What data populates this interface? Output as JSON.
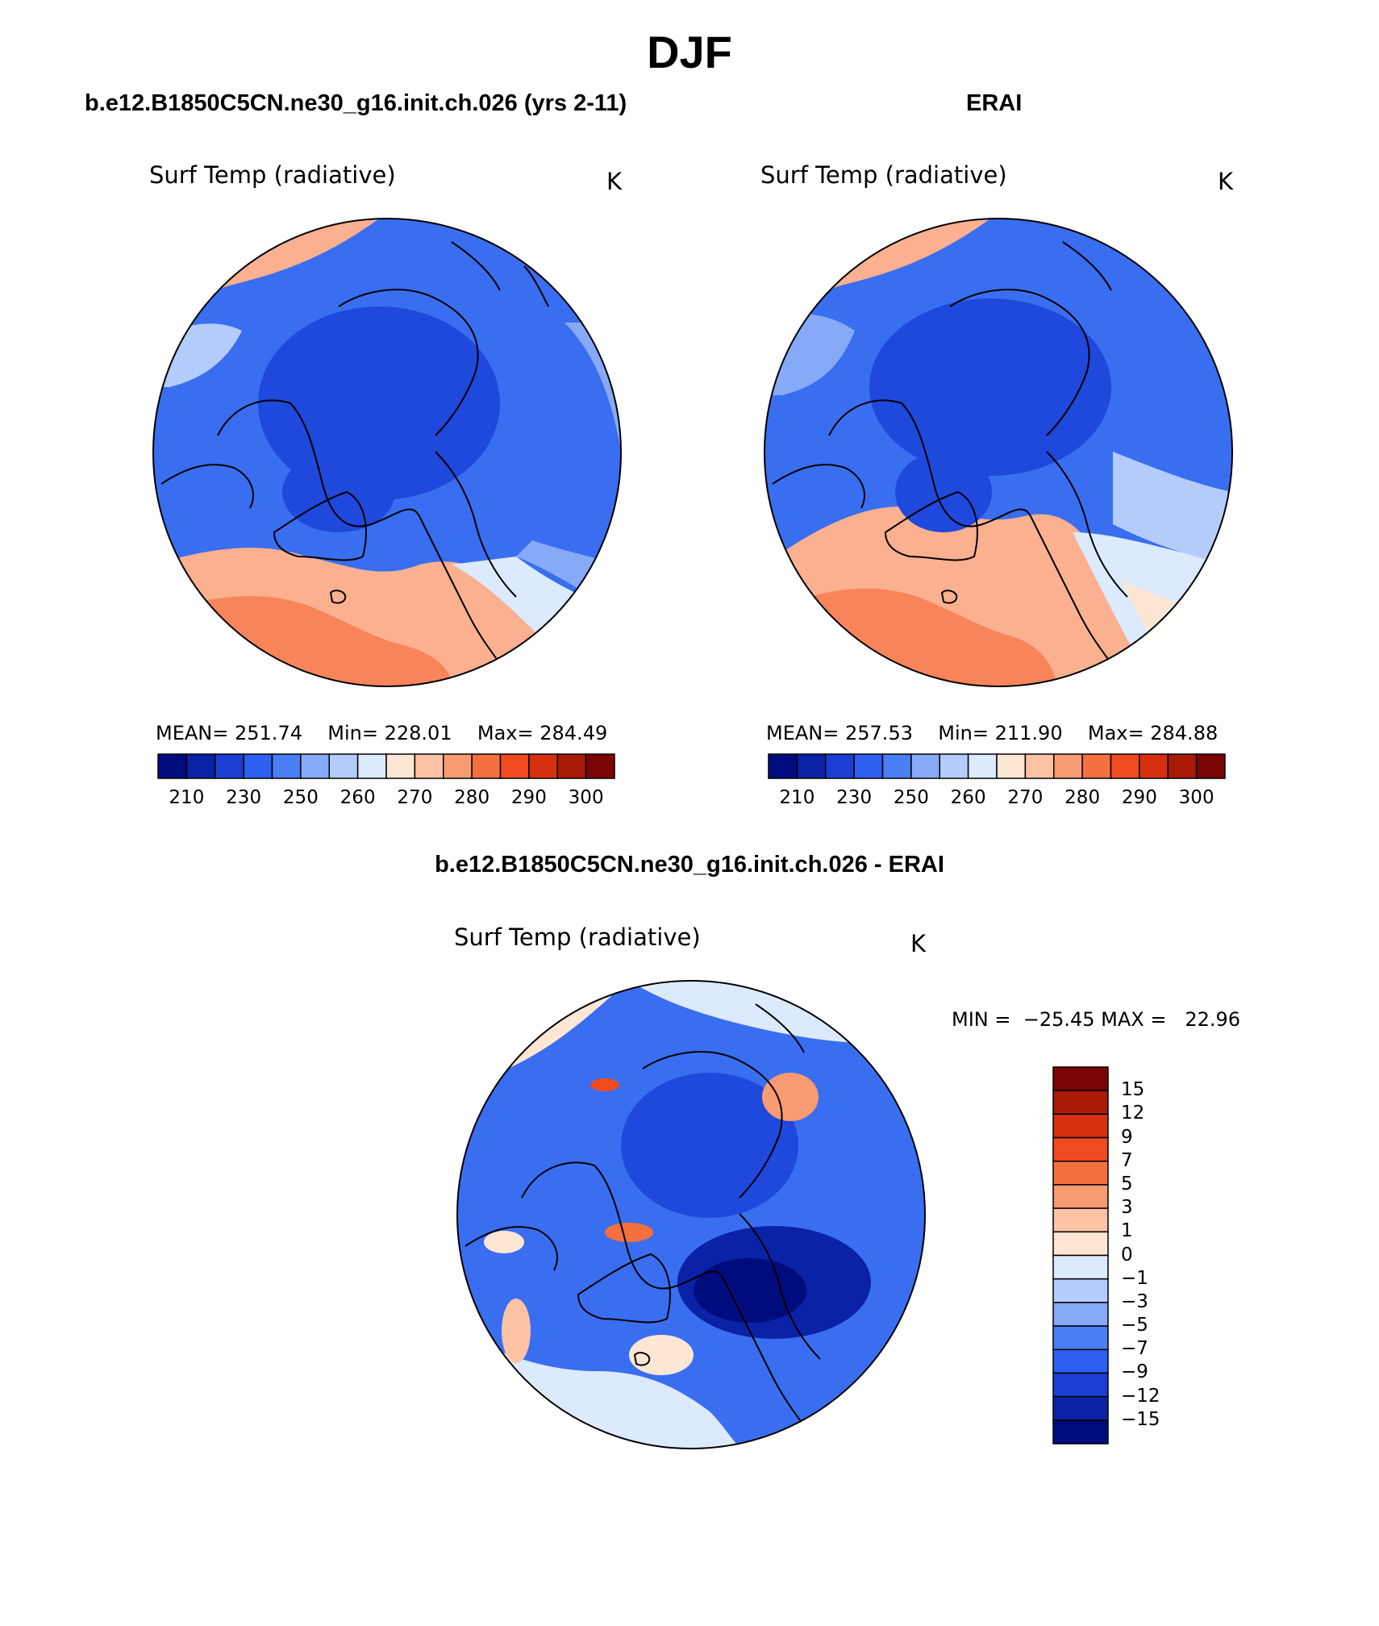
{
  "title": "DJF",
  "panels": [
    {
      "case_title": "b.e12.B1850C5CN.ne30_g16.init.ch.026 (yrs 2-11)",
      "variable": "Surf Temp (radiative)",
      "units": "K",
      "stats": {
        "mean_label": "MEAN=",
        "mean": "251.74",
        "min_label": "Min=",
        "min": "228.01",
        "max_label": "Max=",
        "max": "284.49"
      },
      "colorbar": {
        "colors": [
          "#000c7d",
          "#0a22a6",
          "#1b3fd4",
          "#2d5ff0",
          "#4a7ef5",
          "#86aaf8",
          "#b4ccfb",
          "#dbeafd",
          "#fde6d4",
          "#fbc3a4",
          "#f89a72",
          "#f5703f",
          "#f04a1f",
          "#d6300f",
          "#a91a08",
          "#7a0502"
        ],
        "tick_labels": [
          "210",
          "230",
          "250",
          "260",
          "270",
          "280",
          "290",
          "300"
        ]
      }
    },
    {
      "case_title": "ERAI",
      "variable": "Surf Temp (radiative)",
      "units": "K",
      "stats": {
        "mean_label": "MEAN=",
        "mean": "257.53",
        "min_label": "Min=",
        "min": "211.90",
        "max_label": "Max=",
        "max": "284.88"
      },
      "colorbar": {
        "colors": [
          "#000c7d",
          "#0a22a6",
          "#1b3fd4",
          "#2d5ff0",
          "#4a7ef5",
          "#86aaf8",
          "#b4ccfb",
          "#dbeafd",
          "#fde6d4",
          "#fbc3a4",
          "#f89a72",
          "#f5703f",
          "#f04a1f",
          "#d6300f",
          "#a91a08",
          "#7a0502"
        ],
        "tick_labels": [
          "210",
          "230",
          "250",
          "260",
          "270",
          "280",
          "290",
          "300"
        ]
      }
    }
  ],
  "difference": {
    "case_title": "b.e12.B1850C5CN.ne30_g16.init.ch.026 - ERAI",
    "variable": "Surf Temp (radiative)",
    "units": "K",
    "stats_label": "MIN =  −25.45 MAX =   22.96",
    "colorbar": {
      "colors": [
        "#7a0502",
        "#a91a08",
        "#d6300f",
        "#f04a1f",
        "#f5703f",
        "#f89a72",
        "#fbc3a4",
        "#fde6d4",
        "#dbeafd",
        "#b4ccfb",
        "#86aaf8",
        "#4a7ef5",
        "#2d5ff0",
        "#1b3fd4",
        "#0a22a6",
        "#000c7d"
      ],
      "tick_labels": [
        "15",
        "12",
        "9",
        "7",
        "5",
        "3",
        "1",
        "0",
        "−1",
        "−3",
        "−5",
        "−7",
        "−9",
        "−12",
        "−15"
      ]
    }
  },
  "map_colors": {
    "warm_ocean": "#f8845a",
    "warm_light": "#fbb090",
    "cold_core": "#1f48dc",
    "cold_mid": "#3a6ef0",
    "cold_light": "#86aaf8",
    "pale_blue": "#dbeafd",
    "pale_warm": "#fde6d4",
    "dark_core": "#0a22a6",
    "coast": "#000000"
  }
}
